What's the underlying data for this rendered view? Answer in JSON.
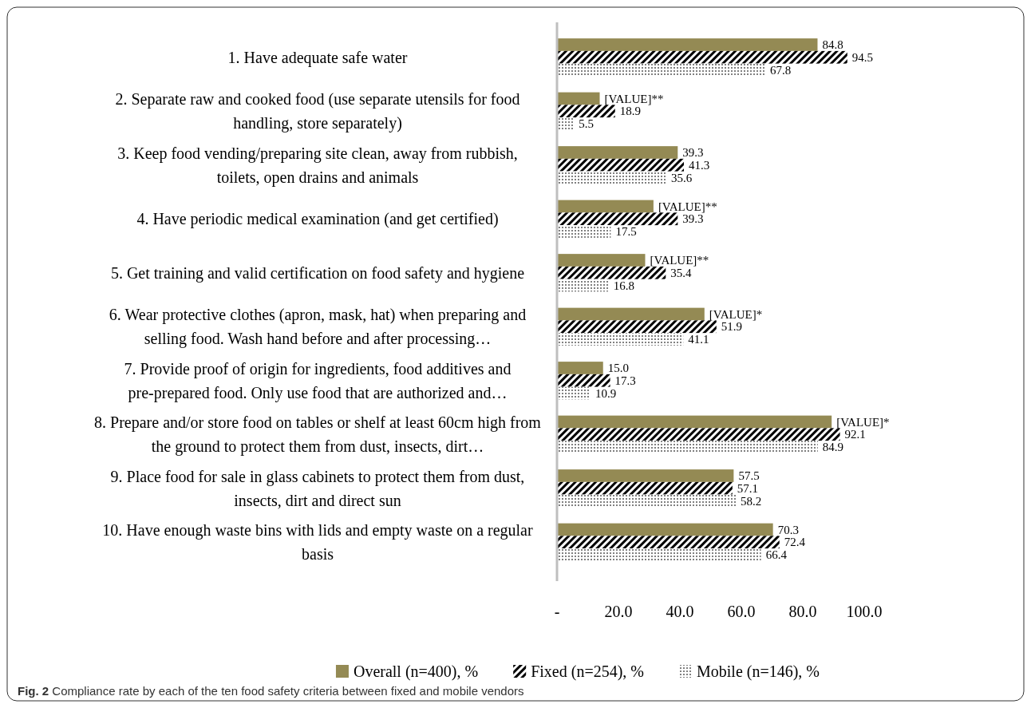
{
  "chart_data": {
    "type": "bar",
    "orientation": "horizontal",
    "categories": [
      "1. Have adequate safe water",
      "2. Separate raw and cooked food (use separate utensils for food handling, store separately)",
      "3. Keep food vending/preparing site clean, away from rubbish, toilets, open drains and animals",
      "4. Have periodic medical examination (and get certified)",
      "5. Get training and valid certification on food safety and hygiene",
      "6. Wear protective clothes (apron, mask, hat) when preparing and selling food. Wash hand before and after processing…",
      "7. Provide proof of origin for ingredients, food additives and pre-prepared food. Only use food that are authorized and…",
      "8. Prepare and/or store food on tables or shelf at least 60cm high from the ground to protect them from dust, insects, dirt…",
      "9. Place food for sale in glass cabinets to protect them from dust, insects, dirt and direct sun",
      "10. Have enough waste bins with lids and empty waste on a regular basis"
    ],
    "series": [
      {
        "name": "Overall (n=400), %",
        "color": "#948a54",
        "values": [
          84.8,
          13.9,
          39.3,
          31.4,
          28.7,
          48.0,
          15.0,
          89.4,
          57.5,
          70.3
        ],
        "value_labels": [
          "84.8",
          "[VALUE]**",
          "39.3",
          "[VALUE]**",
          "[VALUE]**",
          "[VALUE]*",
          "15.0",
          "[VALUE]*",
          "57.5",
          "70.3"
        ]
      },
      {
        "name": "Fixed (n=254), %",
        "color": "#000000",
        "values": [
          94.5,
          18.9,
          41.3,
          39.3,
          35.4,
          51.9,
          17.3,
          92.1,
          57.1,
          72.4
        ],
        "value_labels": [
          "94.5",
          "18.9",
          "41.3",
          "39.3",
          "35.4",
          "51.9",
          "17.3",
          "92.1",
          "57.1",
          "72.4"
        ]
      },
      {
        "name": "Mobile (n=146), %",
        "color": "#808080",
        "values": [
          67.8,
          5.5,
          35.6,
          17.5,
          16.8,
          41.1,
          10.9,
          84.9,
          58.2,
          66.4
        ],
        "value_labels": [
          "67.8",
          "5.5",
          "35.6",
          "17.5",
          "16.8",
          "41.1",
          "10.9",
          "84.9",
          "58.2",
          "66.4"
        ]
      }
    ],
    "xlim": [
      0,
      100
    ],
    "xticks": [
      {
        "value": 0,
        "label": "-"
      },
      {
        "value": 20,
        "label": "20.0"
      },
      {
        "value": 40,
        "label": "40.0"
      },
      {
        "value": 60,
        "label": "60.0"
      },
      {
        "value": 80,
        "label": "80.0"
      },
      {
        "value": 100,
        "label": "100.0"
      }
    ],
    "grid": false,
    "legend": "bottom",
    "annotations": [
      "Fig. 2 Compliance rate by each of the ten food safety criteria between fixed and mobile vendors"
    ]
  }
}
